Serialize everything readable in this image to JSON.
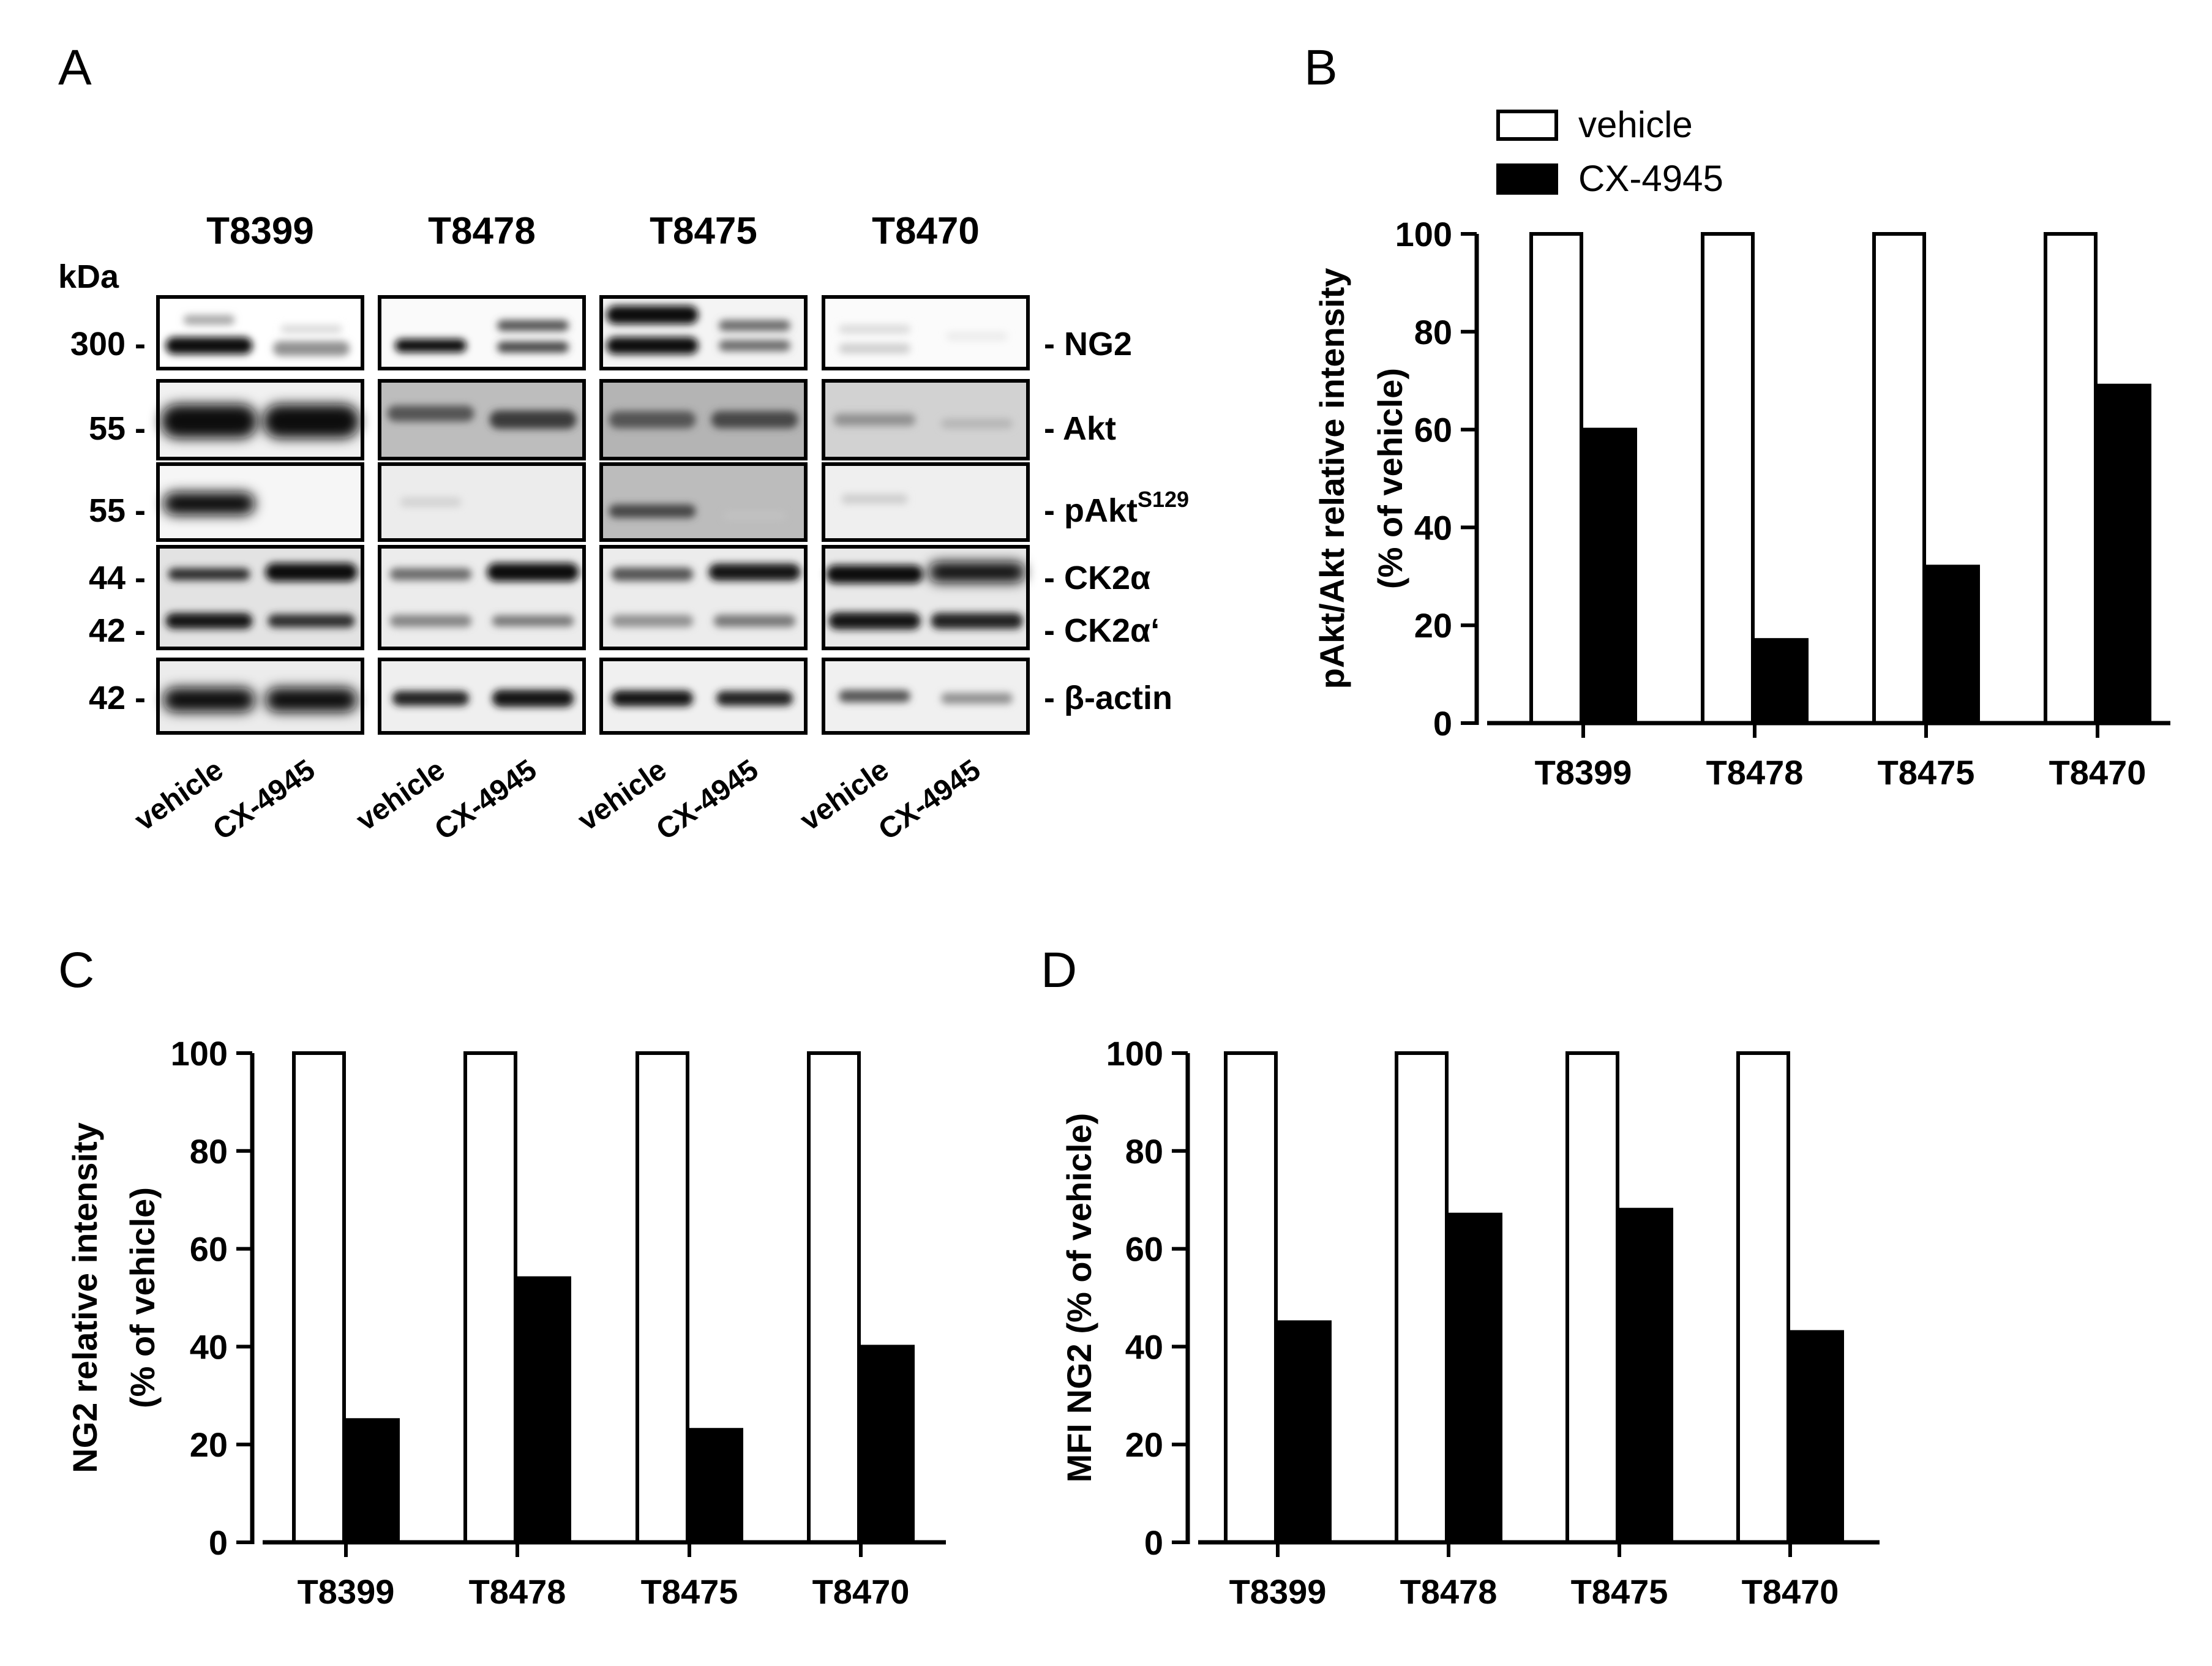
{
  "panel_labels": [
    "A",
    "B",
    "C",
    "D"
  ],
  "blot": {
    "samples": [
      "T8399",
      "T8478",
      "T8475",
      "T8470"
    ],
    "kda_header": "kDa",
    "lanes": [
      "vehicle",
      "CX-4945"
    ],
    "rows": [
      {
        "markers": [
          "300 -"
        ],
        "proteins": [
          "- NG2"
        ],
        "sup": ""
      },
      {
        "markers": [
          "55 -"
        ],
        "proteins": [
          "- Akt"
        ],
        "sup": ""
      },
      {
        "markers": [
          "55 -"
        ],
        "proteins": [
          "- pAkt"
        ],
        "sup": "S129"
      },
      {
        "markers": [
          "44 -",
          "42 -"
        ],
        "proteins": [
          "- CK2α",
          "- CK2α‘"
        ],
        "sup": ""
      },
      {
        "markers": [
          "42 -"
        ],
        "proteins": [
          "- β-actin"
        ],
        "sup": ""
      }
    ]
  },
  "legend": {
    "vehicle": "vehicle",
    "treated": "CX-4945"
  },
  "colors": {
    "vehicle": "#ffffff",
    "treated": "#000000",
    "axis": "#000000"
  },
  "chart_data": [
    {
      "panel": "B",
      "type": "bar",
      "categories": [
        "T8399",
        "T8478",
        "T8475",
        "T8470"
      ],
      "series": [
        {
          "name": "vehicle",
          "values": [
            100,
            100,
            100,
            100
          ]
        },
        {
          "name": "CX-4945",
          "values": [
            60,
            17,
            32,
            69
          ]
        }
      ],
      "ylabel": [
        "pAkt/Akt relative intensity",
        "(% of vehicle)"
      ],
      "ylim": [
        0,
        100
      ],
      "yticks": [
        0,
        20,
        40,
        60,
        80,
        100
      ],
      "legend_position": "top-left",
      "grid": false
    },
    {
      "panel": "C",
      "type": "bar",
      "categories": [
        "T8399",
        "T8478",
        "T8475",
        "T8470"
      ],
      "series": [
        {
          "name": "vehicle",
          "values": [
            100,
            100,
            100,
            100
          ]
        },
        {
          "name": "CX-4945",
          "values": [
            25,
            54,
            23,
            40
          ]
        }
      ],
      "ylabel": [
        "NG2 relative intensity",
        "(% of vehicle)"
      ],
      "ylim": [
        0,
        100
      ],
      "yticks": [
        0,
        20,
        40,
        60,
        80,
        100
      ],
      "grid": false
    },
    {
      "panel": "D",
      "type": "bar",
      "categories": [
        "T8399",
        "T8478",
        "T8475",
        "T8470"
      ],
      "series": [
        {
          "name": "vehicle",
          "values": [
            100,
            100,
            100,
            100
          ]
        },
        {
          "name": "CX-4945",
          "values": [
            45,
            67,
            68,
            43
          ]
        }
      ],
      "ylabel": [
        "MFI NG2 (% of vehicle)"
      ],
      "ylim": [
        0,
        100
      ],
      "yticks": [
        0,
        20,
        40,
        60,
        80,
        100
      ],
      "grid": false
    }
  ]
}
